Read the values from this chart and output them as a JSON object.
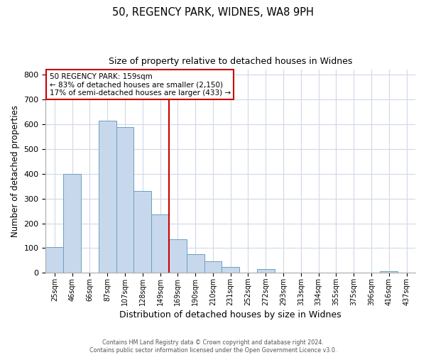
{
  "title": "50, REGENCY PARK, WIDNES, WA8 9PH",
  "subtitle": "Size of property relative to detached houses in Widnes",
  "xlabel": "Distribution of detached houses by size in Widnes",
  "ylabel": "Number of detached properties",
  "bar_labels": [
    "25sqm",
    "46sqm",
    "66sqm",
    "87sqm",
    "107sqm",
    "128sqm",
    "149sqm",
    "169sqm",
    "190sqm",
    "210sqm",
    "231sqm",
    "252sqm",
    "272sqm",
    "293sqm",
    "313sqm",
    "334sqm",
    "355sqm",
    "375sqm",
    "396sqm",
    "416sqm",
    "437sqm"
  ],
  "bar_values": [
    105,
    400,
    0,
    615,
    590,
    330,
    237,
    135,
    75,
    48,
    25,
    0,
    15,
    0,
    0,
    0,
    0,
    0,
    0,
    8,
    0
  ],
  "bar_color": "#c8d8ec",
  "bar_edge_color": "#6a9fc0",
  "vline_color": "#cc0000",
  "annotation_box_text_line1": "50 REGENCY PARK: 159sqm",
  "annotation_box_text_line2": "← 83% of detached houses are smaller (2,150)",
  "annotation_box_text_line3": "17% of semi-detached houses are larger (433) →",
  "annotation_box_edge_color": "#cc0000",
  "annotation_box_face_color": "#ffffff",
  "ylim": [
    0,
    820
  ],
  "yticks": [
    0,
    100,
    200,
    300,
    400,
    500,
    600,
    700,
    800
  ],
  "footer_line1": "Contains HM Land Registry data © Crown copyright and database right 2024.",
  "footer_line2": "Contains public sector information licensed under the Open Government Licence v3.0.",
  "bg_color": "#ffffff",
  "plot_bg_color": "#ffffff",
  "grid_color": "#d0d8e8",
  "vline_x_index": 6.5
}
